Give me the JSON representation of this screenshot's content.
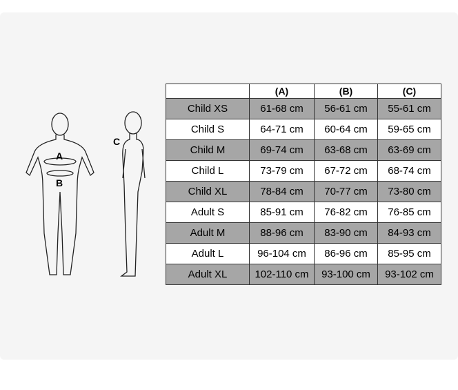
{
  "figure_labels": {
    "a": "A",
    "b": "B",
    "c": "C"
  },
  "table": {
    "headers": [
      "",
      "(A)",
      "(B)",
      "(C)"
    ],
    "rows": [
      {
        "size": "Child XS",
        "a": "61-68 cm",
        "b": "56-61 cm",
        "c": "55-61 cm",
        "shaded": true
      },
      {
        "size": "Child S",
        "a": "64-71 cm",
        "b": "60-64 cm",
        "c": "59-65 cm",
        "shaded": false
      },
      {
        "size": "Child M",
        "a": "69-74 cm",
        "b": "63-68 cm",
        "c": "63-69 cm",
        "shaded": true
      },
      {
        "size": "Child L",
        "a": "73-79 cm",
        "b": "67-72 cm",
        "c": "68-74 cm",
        "shaded": false
      },
      {
        "size": "Child XL",
        "a": "78-84 cm",
        "b": "70-77 cm",
        "c": "73-80 cm",
        "shaded": true
      },
      {
        "size": "Adult S",
        "a": "85-91 cm",
        "b": "76-82 cm",
        "c": "76-85 cm",
        "shaded": false
      },
      {
        "size": "Adult M",
        "a": "88-96 cm",
        "b": "83-90 cm",
        "c": "84-93 cm",
        "shaded": true
      },
      {
        "size": "Adult L",
        "a": "96-104 cm",
        "b": "86-96 cm",
        "c": "85-95 cm",
        "shaded": false
      },
      {
        "size": "Adult XL",
        "a": "102-110 cm",
        "b": "93-100 cm",
        "c": "93-102 cm",
        "shaded": true
      }
    ]
  },
  "colors": {
    "shaded_row": "#a6a6a6",
    "plain_row": "#ffffff",
    "card_bg": "#f5f5f5"
  }
}
